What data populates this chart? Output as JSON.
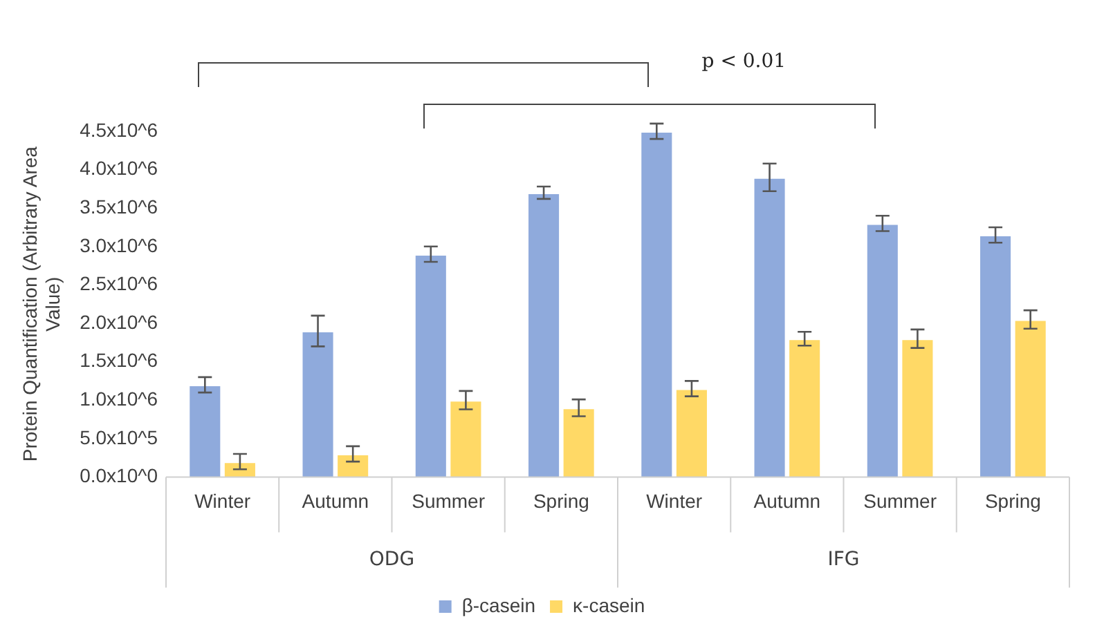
{
  "chart_data": {
    "type": "bar",
    "ylabel": "Protein Quantification (Arbitrary Area Value)",
    "categories": [
      "Winter",
      "Autumn",
      "Summer",
      "Spring",
      "Winter",
      "Autumn",
      "Summer",
      "Spring"
    ],
    "series": [
      {
        "name": "β-casein",
        "color": "#8faadc",
        "values": [
          1200000,
          1900000,
          2900000,
          3700000,
          4500000,
          3900000,
          3300000,
          3150000
        ],
        "errors": [
          100000,
          200000,
          100000,
          80000,
          100000,
          180000,
          100000,
          100000
        ]
      },
      {
        "name": "κ-casein",
        "color": "#ffd966",
        "values": [
          200000,
          300000,
          1000000,
          900000,
          1150000,
          1800000,
          1800000,
          2050000
        ],
        "errors": [
          100000,
          100000,
          120000,
          110000,
          100000,
          90000,
          120000,
          120000
        ]
      }
    ],
    "ylim": [
      0,
      4500000
    ],
    "yticks": [
      {
        "value": 0,
        "label": "0.0x10^0"
      },
      {
        "value": 500000,
        "label": "5.0x10^5"
      },
      {
        "value": 1000000,
        "label": "1.0x10^6"
      },
      {
        "value": 1500000,
        "label": "1.5x10^6"
      },
      {
        "value": 2000000,
        "label": "2.0x10^6"
      },
      {
        "value": 2500000,
        "label": "2.5x10^6"
      },
      {
        "value": 3000000,
        "label": "3.0x10^6"
      },
      {
        "value": 3500000,
        "label": "3.5x10^6"
      },
      {
        "value": 4000000,
        "label": "4.0x10^6"
      },
      {
        "value": 4500000,
        "label": "4.5x10^6"
      }
    ],
    "annotations": [
      "p < 0.01",
      "ODG",
      "IFG"
    ],
    "grid": false,
    "legend": "bottom"
  }
}
